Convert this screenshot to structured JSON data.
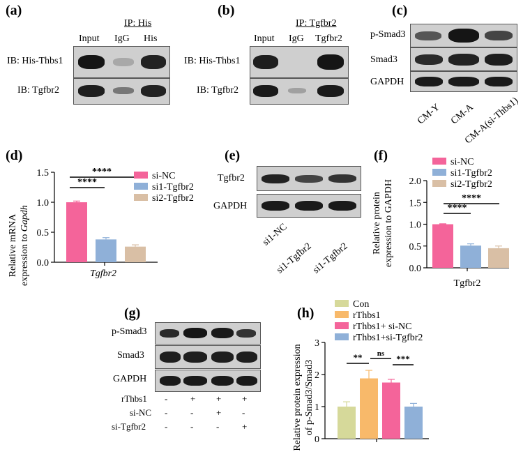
{
  "panel_a": {
    "label": "(a)",
    "ip": "IP: His",
    "lanes": [
      "Input",
      "IgG",
      "His"
    ],
    "rows": [
      "IB: His-Thbs1",
      "IB: Tgfbr2"
    ]
  },
  "panel_b": {
    "label": "(b)",
    "ip": "IP: Tgfbr2",
    "lanes": [
      "Input",
      "IgG",
      "Tgfbr2"
    ],
    "rows": [
      "IB: His-Thbs1",
      "IB: Tgfbr2"
    ]
  },
  "panel_c": {
    "label": "(c)",
    "rows": [
      "p-Smad3",
      "Smad3",
      "GAPDH"
    ],
    "lanes": [
      "CM-Y",
      "CM-A",
      "CM-A(si-Thbs1)"
    ]
  },
  "panel_d": {
    "label": "(d)",
    "chart_data": {
      "type": "bar",
      "categories": [
        "Tgfbr2"
      ],
      "series": [
        {
          "name": "si-NC",
          "values": [
            1.0
          ],
          "error": [
            0.02
          ],
          "color": "#f4649a"
        },
        {
          "name": "si1-Tgfbr2",
          "values": [
            0.38
          ],
          "error": [
            0.03
          ],
          "color": "#8fb0d8"
        },
        {
          "name": "si2-Tgfbr2",
          "values": [
            0.26
          ],
          "error": [
            0.03
          ],
          "color": "#d9bfa5"
        }
      ],
      "ylabel_1": "Relative mRNA",
      "ylabel_2a": "expression to ",
      "ylabel_2b": "Gapdh",
      "xlabel": "Tgfbr2",
      "ylim": [
        0,
        1.5
      ],
      "yticks": [
        "0.0",
        "0.5",
        "1.0",
        "1.5"
      ],
      "sig": [
        "****",
        "****"
      ],
      "legend": "right"
    }
  },
  "panel_e": {
    "label": "(e)",
    "rows": [
      "Tgfbr2",
      "GAPDH"
    ],
    "lanes": [
      "si1-NC",
      "si1-Tgfbr2",
      "si1-Tgfbr2"
    ]
  },
  "panel_f": {
    "label": "(f)",
    "chart_data": {
      "type": "bar",
      "categories": [
        "Tgfbr2"
      ],
      "series": [
        {
          "name": "si-NC",
          "values": [
            1.0
          ],
          "error": [
            0.01
          ],
          "color": "#f4649a"
        },
        {
          "name": "si1-Tgfbr2",
          "values": [
            0.51
          ],
          "error": [
            0.04
          ],
          "color": "#8fb0d8"
        },
        {
          "name": "si2-Tgfbr2",
          "values": [
            0.45
          ],
          "error": [
            0.05
          ],
          "color": "#d9bfa5"
        }
      ],
      "ylabel_1": "Relative protein",
      "ylabel_2": "expression to GAPDH",
      "xlabel": "Tgfbr2",
      "ylim": [
        0,
        2.0
      ],
      "yticks": [
        "0.0",
        "0.5",
        "1.0",
        "1.5",
        "2.0"
      ],
      "sig": [
        "****",
        "****"
      ],
      "legend": "top"
    }
  },
  "panel_g": {
    "label": "(g)",
    "rows": [
      "p-Smad3",
      "Smad3",
      "GAPDH"
    ],
    "conditions": [
      {
        "name": "rThbs1",
        "marks": [
          "-",
          "+",
          "+",
          "+"
        ]
      },
      {
        "name": "si-NC",
        "marks": [
          "-",
          "-",
          "+",
          "-"
        ]
      },
      {
        "name": "si-Tgfbr2",
        "marks": [
          "-",
          "-",
          "-",
          "+"
        ]
      }
    ]
  },
  "panel_h": {
    "label": "(h)",
    "chart_data": {
      "type": "bar",
      "categories": [
        ""
      ],
      "series": [
        {
          "name": "Con",
          "values": [
            1.0
          ],
          "error": [
            0.15
          ],
          "color": "#d6d99a"
        },
        {
          "name": "rThbs1",
          "values": [
            1.88
          ],
          "error": [
            0.25
          ],
          "color": "#f8b96a"
        },
        {
          "name": "rThbs1+ si-NC",
          "values": [
            1.75
          ],
          "error": [
            0.1
          ],
          "color": "#f4649a"
        },
        {
          "name": "rThbs1+si-Tgfbr2",
          "values": [
            1.0
          ],
          "error": [
            0.1
          ],
          "color": "#8fb0d8"
        }
      ],
      "ylabel_1": "Relative protein expression",
      "ylabel_2": "of p-Smad3/Smad3",
      "ylim": [
        0,
        3
      ],
      "yticks": [
        "0",
        "1",
        "2",
        "3"
      ],
      "sig": [
        "**",
        "ns",
        "***"
      ],
      "legend": "top"
    }
  }
}
